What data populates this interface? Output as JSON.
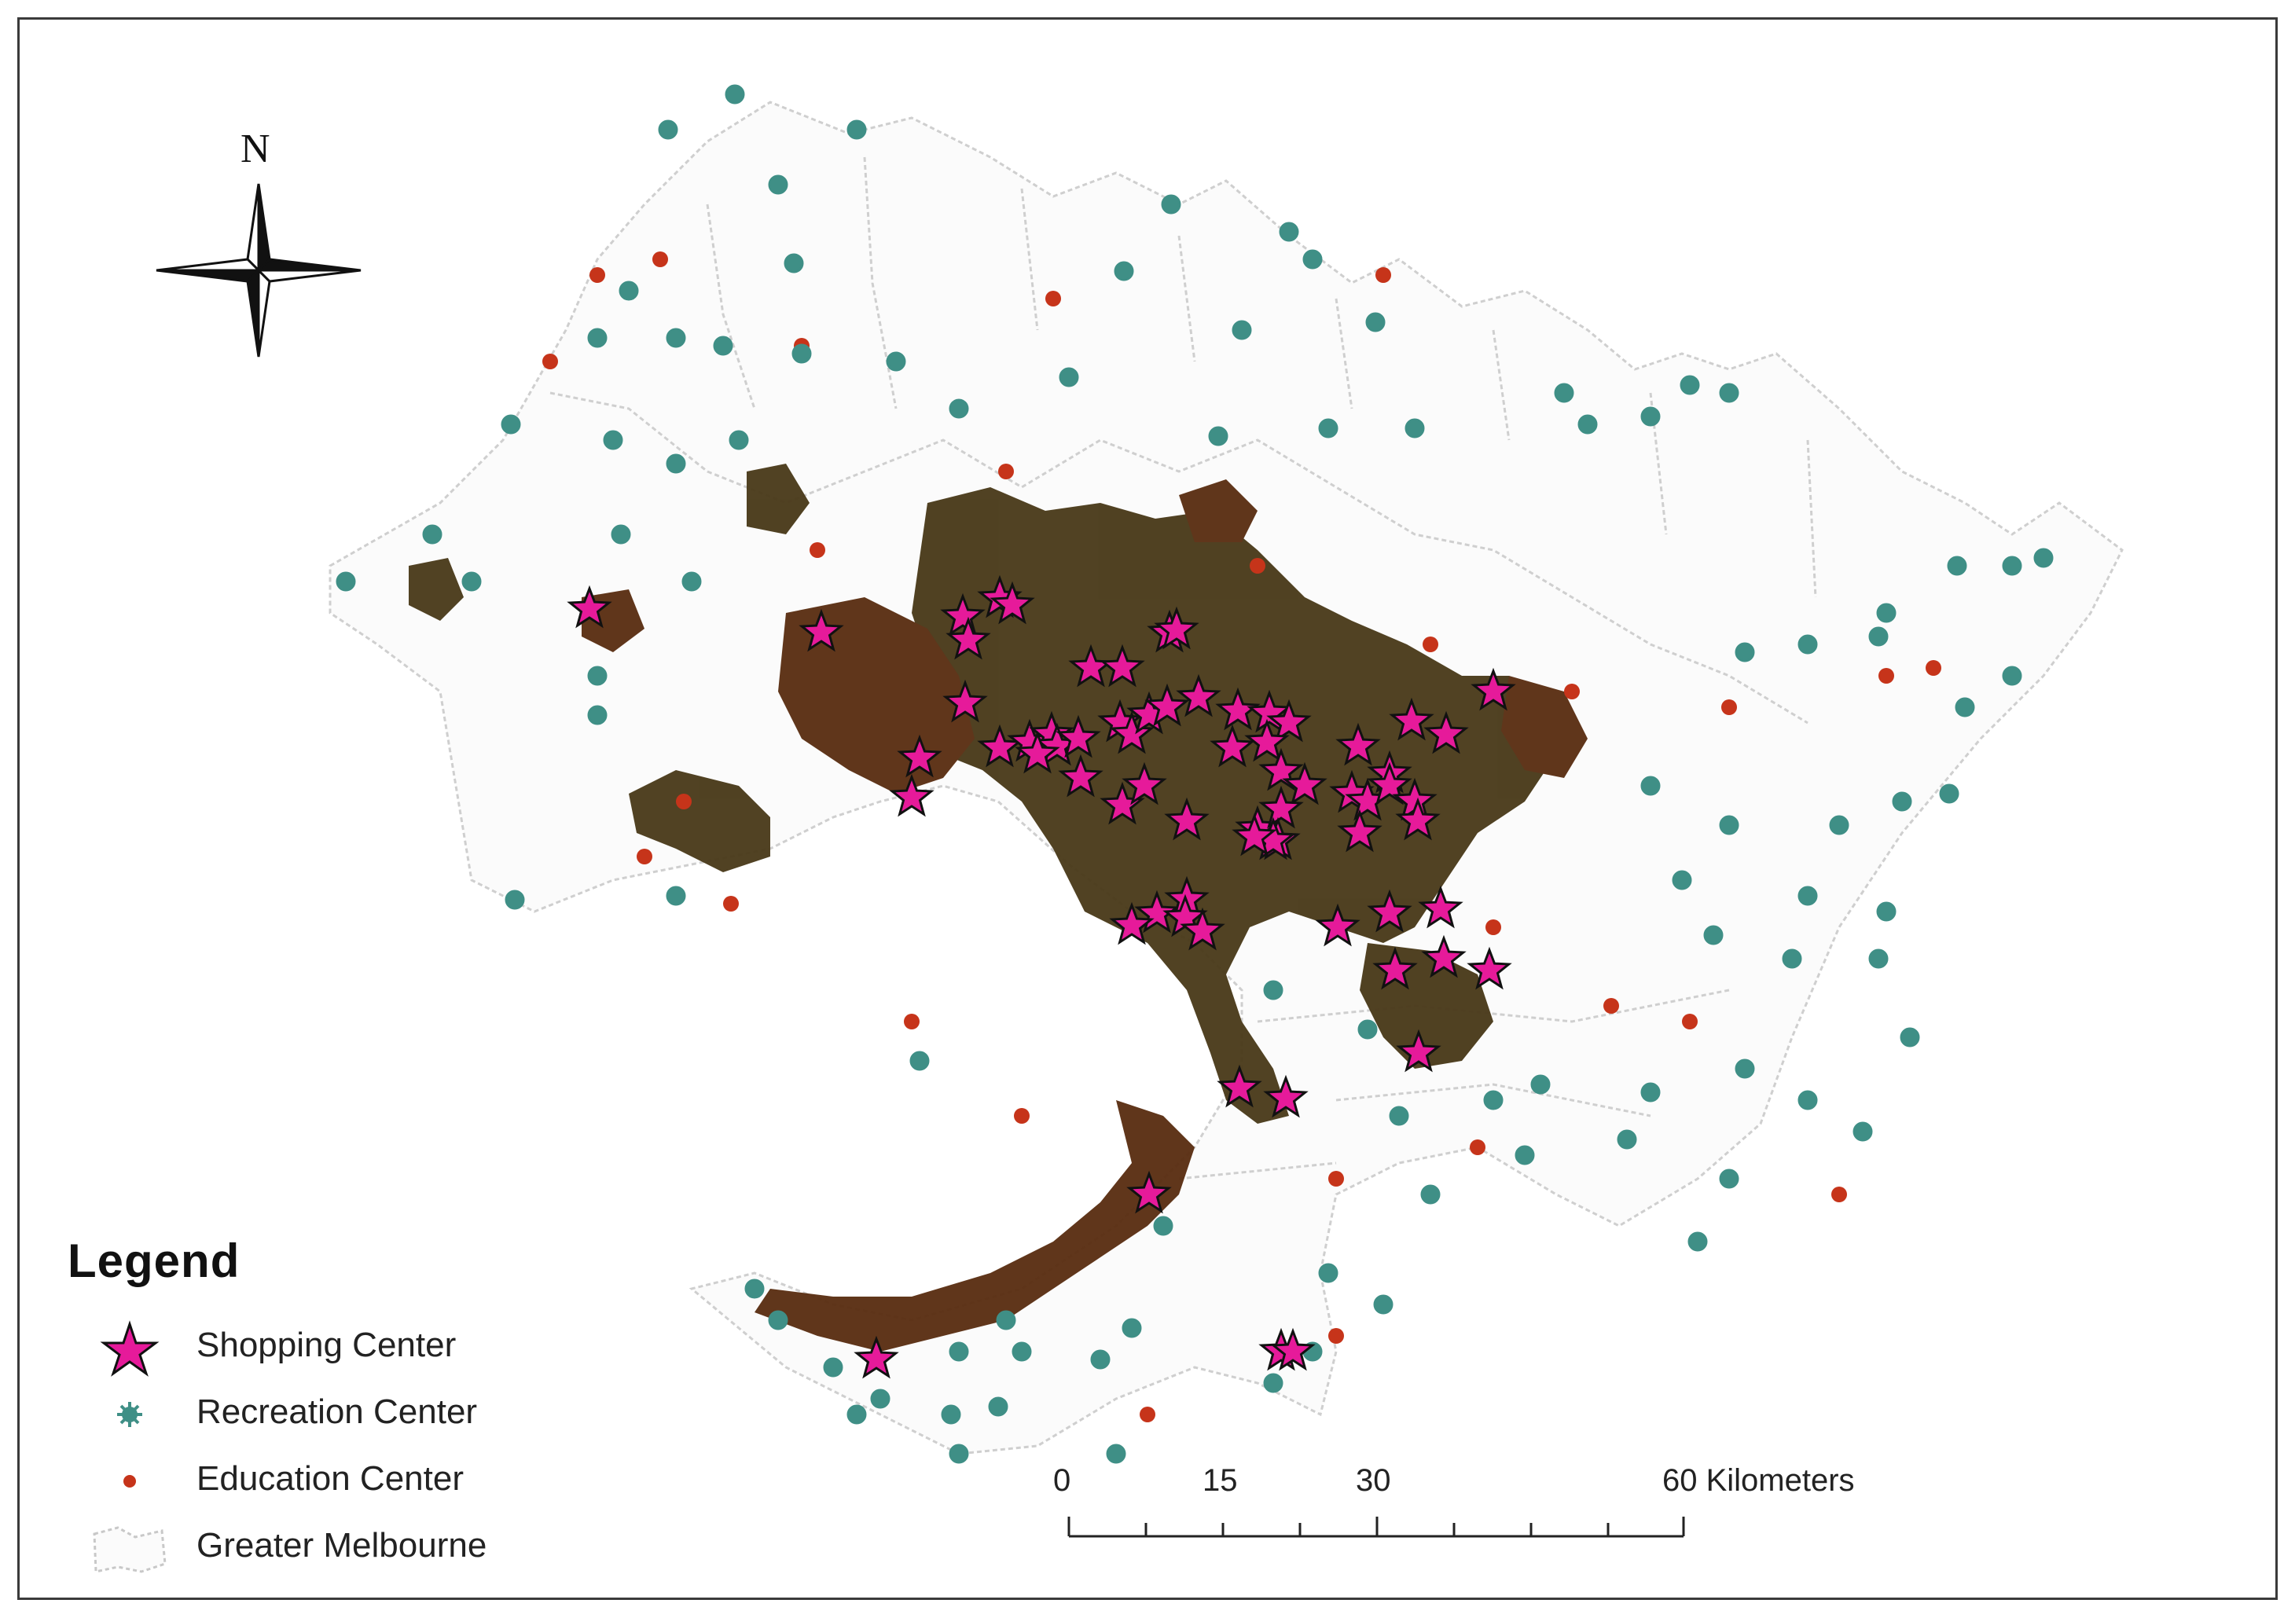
{
  "legend": {
    "title": "Legend",
    "items": [
      {
        "label": "Shopping Center",
        "symbol": "pink-star-icon",
        "color": "#e61a9a"
      },
      {
        "label": "Recreation Center",
        "symbol": "teal-burst-icon",
        "color": "#3f8f86"
      },
      {
        "label": "Education Center",
        "symbol": "red-dot-icon",
        "color": "#c6341a"
      },
      {
        "label": "Greater Melbourne",
        "symbol": "boundary-outline-icon",
        "color": "#c8c8c8"
      }
    ]
  },
  "north_arrow": {
    "label": "N"
  },
  "scale_bar": {
    "ticks": [
      "0",
      "15",
      "30"
    ],
    "end_label": "60 Kilometers"
  },
  "colors": {
    "shopping": "#e61a9a",
    "recreation": "#3f8f86",
    "education": "#c6341a",
    "dense": "#4a3a1a",
    "boundary": "#d0d0d0"
  }
}
